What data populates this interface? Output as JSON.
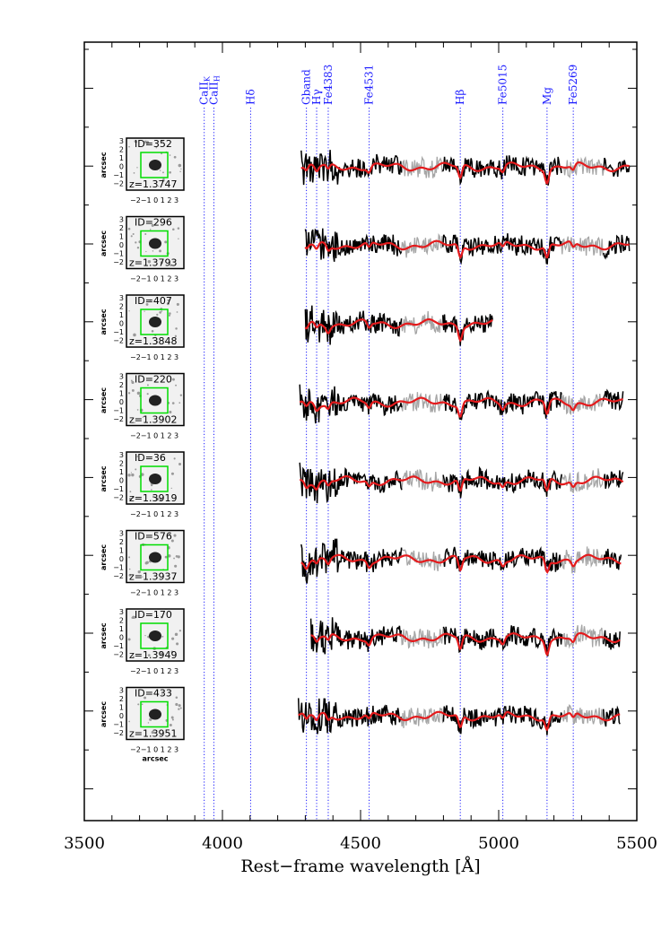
{
  "chart_data": {
    "type": "line",
    "xlabel": "Rest−frame wavelength [Å]",
    "xlim": [
      3500,
      5500
    ],
    "x_ticks": [
      3500,
      4000,
      4500,
      5000,
      5500
    ],
    "x_tick_labels": [
      "3500",
      "4000",
      "4500",
      "5000",
      "5500"
    ],
    "colors": {
      "observed": "#000000",
      "model": "#e41a1c",
      "masked": "#a6a6a6",
      "lines": "#1a1aff",
      "box": "#00dd00"
    },
    "spectral_lines": [
      {
        "name": "CaII",
        "sub": "K",
        "wavelength": 3934
      },
      {
        "name": "CaII",
        "sub": "H",
        "wavelength": 3969
      },
      {
        "name": "Hδ",
        "sub": "",
        "wavelength": 4102
      },
      {
        "name": "Gband",
        "sub": "",
        "wavelength": 4304
      },
      {
        "name": "Hγ",
        "sub": "",
        "wavelength": 4341
      },
      {
        "name": "Fe4383",
        "sub": "",
        "wavelength": 4383
      },
      {
        "name": "Fe4531",
        "sub": "",
        "wavelength": 4531
      },
      {
        "name": "Hβ",
        "sub": "",
        "wavelength": 4861
      },
      {
        "name": "Fe5015",
        "sub": "",
        "wavelength": 5015
      },
      {
        "name": "Mg",
        "sub": "",
        "wavelength": 5175
      },
      {
        "name": "Fe5269",
        "sub": "",
        "wavelength": 5270
      }
    ],
    "stamp_axis": {
      "x_tick_labels": "−2−1 0  1  2  3",
      "y_tick_labels": [
        "3",
        "2",
        "1",
        "0",
        "−1",
        "−2"
      ],
      "label": "arcsec"
    },
    "galaxies": [
      {
        "id": "ID=352",
        "z": "z=1.3747",
        "wave_range": [
          4285,
          5475
        ]
      },
      {
        "id": "ID=296",
        "z": "z=1.3793",
        "wave_range": [
          4300,
          5475
        ]
      },
      {
        "id": "ID=407",
        "z": "z=1.3848",
        "wave_range": [
          4300,
          4980
        ]
      },
      {
        "id": "ID=220",
        "z": "z=1.3902",
        "wave_range": [
          4280,
          5450
        ]
      },
      {
        "id": "ID=36",
        "z": "z=1.3919",
        "wave_range": [
          4280,
          5450
        ]
      },
      {
        "id": "ID=576",
        "z": "z=1.3937",
        "wave_range": [
          4285,
          5445
        ]
      },
      {
        "id": "ID=170",
        "z": "z=1.3949",
        "wave_range": [
          4320,
          5440
        ]
      },
      {
        "id": "ID=433",
        "z": "z=1.3951",
        "wave_range": [
          4275,
          5440
        ]
      }
    ]
  }
}
